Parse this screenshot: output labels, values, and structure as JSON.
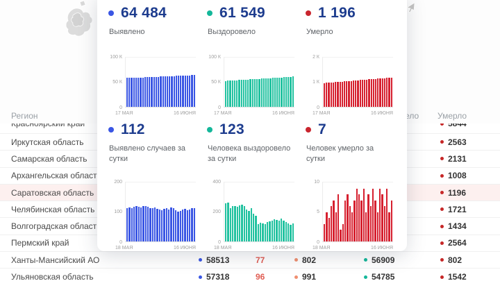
{
  "modal": {
    "stats": [
      {
        "value": "64 484",
        "label": "Выявлено",
        "color": "#3a56e4"
      },
      {
        "value": "61 549",
        "label": "Выздоровело",
        "color": "#14b79a"
      },
      {
        "value": "1 196",
        "label": "Умерло",
        "color": "#c9252e"
      },
      {
        "value": "112",
        "label": "Выявлено случаев за сутки",
        "color": "#3a56e4"
      },
      {
        "value": "123",
        "label": "Человека выздоровело за сутки",
        "color": "#14b79a"
      },
      {
        "value": "7",
        "label": "Человек умерло за сутки",
        "color": "#c9252e"
      }
    ]
  },
  "chart_data": [
    {
      "type": "bar",
      "title": "Выявлено",
      "color": "#3a56e4",
      "x_first": "17 МАЯ",
      "x_last": "16 ИЮНЯ",
      "yticks": [
        "100 К",
        "50 К",
        "0"
      ],
      "ymax": 100000,
      "values": [
        58530,
        58723,
        58916,
        59109,
        59302,
        59495,
        59688,
        59881,
        60074,
        60267,
        60460,
        60653,
        60846,
        61039,
        61232,
        61425,
        61618,
        61811,
        62004,
        62197,
        62390,
        62583,
        62776,
        62969,
        63162,
        63355,
        63548,
        63741,
        63934,
        64127,
        64484
      ]
    },
    {
      "type": "bar",
      "title": "Выздоровело",
      "color": "#22c2a0",
      "x_first": "17 МАЯ",
      "x_last": "16 ИЮНЯ",
      "yticks": [
        "100 К",
        "50 К",
        "0"
      ],
      "ymax": 100000,
      "values": [
        52600,
        52889,
        53178,
        53467,
        53756,
        54045,
        54334,
        54623,
        54912,
        55201,
        55490,
        55779,
        56068,
        56357,
        56646,
        56935,
        57224,
        57513,
        57802,
        58091,
        58380,
        58669,
        58958,
        59247,
        59536,
        59825,
        60114,
        60403,
        60692,
        60981,
        61549
      ]
    },
    {
      "type": "bar",
      "title": "Умерло",
      "color": "#d6202f",
      "x_first": "17 МАЯ",
      "x_last": "16 ИЮНЯ",
      "yticks": [
        "2 К",
        "1 К",
        "0"
      ],
      "ymax": 2000,
      "values": [
        970,
        977,
        984,
        991,
        998,
        1005,
        1013,
        1020,
        1027,
        1034,
        1042,
        1049,
        1056,
        1063,
        1071,
        1078,
        1085,
        1092,
        1100,
        1107,
        1114,
        1121,
        1129,
        1136,
        1143,
        1150,
        1158,
        1165,
        1172,
        1179,
        1196
      ]
    },
    {
      "type": "bar",
      "title": "Выявлено случаев за сутки",
      "color": "#3a56e4",
      "x_first": "18 МАЯ",
      "x_last": "16 ИЮНЯ",
      "yticks": [
        "200",
        "100",
        "0"
      ],
      "ymax": 200,
      "values": [
        112,
        116,
        114,
        118,
        120,
        117,
        115,
        119,
        121,
        118,
        114,
        112,
        115,
        111,
        109,
        106,
        111,
        114,
        109,
        116,
        113,
        106,
        101,
        104,
        109,
        111,
        107,
        109,
        112,
        112
      ]
    },
    {
      "type": "bar",
      "title": "Человека выздоровело за сутки",
      "color": "#22c2a0",
      "x_first": "18 МАЯ",
      "x_last": "16 ИЮНЯ",
      "yticks": [
        "400",
        "200",
        "0"
      ],
      "ymax": 400,
      "values": [
        258,
        262,
        226,
        238,
        242,
        236,
        246,
        250,
        240,
        216,
        206,
        226,
        188,
        172,
        118,
        128,
        122,
        116,
        132,
        136,
        142,
        150,
        146,
        140,
        154,
        142,
        130,
        122,
        112,
        123
      ]
    },
    {
      "type": "bar",
      "title": "Человек умерло за сутки",
      "color": "#d6202f",
      "x_first": "18 МАЯ",
      "x_last": "16 ИЮНЯ",
      "yticks": [
        "10",
        "5",
        "0"
      ],
      "ymax": 10,
      "values": [
        3,
        5,
        4,
        6,
        7,
        5,
        8,
        2,
        3,
        7,
        8,
        6,
        5,
        7,
        9,
        8,
        7,
        9,
        5,
        8,
        6,
        9,
        7,
        5,
        9,
        8,
        6,
        9,
        5,
        7
      ]
    }
  ],
  "table": {
    "header": {
      "region": "Регион",
      "recovered": "Выздоровело",
      "deaths": "Умерло"
    },
    "rows": [
      {
        "name": "Красноярский край",
        "deaths": "5844"
      },
      {
        "name": "Иркутская область",
        "deaths": "2563"
      },
      {
        "name": "Самарская область",
        "deaths": "2131"
      },
      {
        "name": "Архангельская область",
        "deaths": "1008"
      },
      {
        "name": "Саратовская область",
        "deaths": "1196",
        "highlight": true
      },
      {
        "name": "Челябинская область",
        "deaths": "1721"
      },
      {
        "name": "Волгоградская область",
        "deaths": "1434"
      },
      {
        "name": "Пермский край",
        "deaths": "2564"
      },
      {
        "name": "Ханты-Мансийский АО",
        "detected": "58513",
        "new_cases": "77",
        "active": "802",
        "recovered": "56909",
        "deaths": "802"
      },
      {
        "name": "Ульяновская область",
        "detected": "57318",
        "new_cases": "96",
        "active": "991",
        "recovered": "54785",
        "deaths": "1542"
      }
    ]
  },
  "colors": {
    "detected_dot": "#3a56e4",
    "recovered_dot": "#14b79a",
    "active_dot": "#ef8f70",
    "deaths_dot": "#c62828",
    "new_cases_text": "#e05c52",
    "highlight_row": "#fdf0ef"
  }
}
